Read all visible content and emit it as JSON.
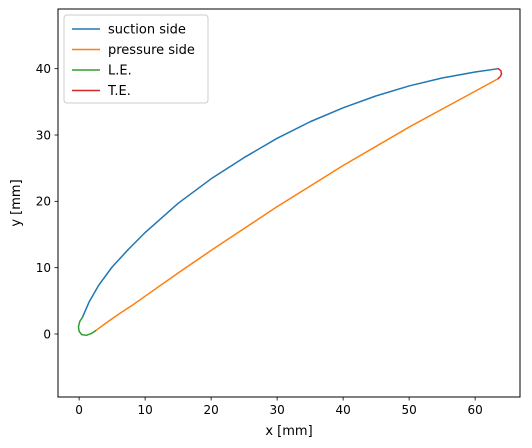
{
  "chart_data": {
    "type": "line",
    "title": "",
    "xlabel": "x [mm]",
    "ylabel": "y [mm]",
    "xlim": [
      -3.2,
      66.8
    ],
    "ylim": [
      -9.5,
      49.0
    ],
    "xticks": [
      0,
      10,
      20,
      30,
      40,
      50,
      60
    ],
    "yticks": [
      0,
      10,
      20,
      30,
      40
    ],
    "xtick_labels": [
      "0",
      "10",
      "20",
      "30",
      "40",
      "50",
      "60"
    ],
    "ytick_labels": [
      "0",
      "10",
      "20",
      "30",
      "40"
    ],
    "grid": false,
    "legend_position": "upper-left",
    "series": [
      {
        "name": "suction side",
        "color": "#1f77b4",
        "x": [
          0.5,
          1.5,
          3.0,
          5.0,
          7.5,
          10.0,
          15.0,
          20.0,
          25.0,
          30.0,
          35.0,
          40.0,
          45.0,
          50.0,
          55.0,
          60.0,
          63.5
        ],
        "y": [
          2.5,
          4.8,
          7.4,
          10.1,
          12.8,
          15.3,
          19.7,
          23.4,
          26.6,
          29.5,
          32.0,
          34.1,
          35.9,
          37.4,
          38.6,
          39.5,
          40.0
        ]
      },
      {
        "name": "pressure side",
        "color": "#ff7f0e",
        "x": [
          2.5,
          4.0,
          6.0,
          8.0,
          10.0,
          15.0,
          20.0,
          25.0,
          30.0,
          35.0,
          40.0,
          45.0,
          50.0,
          55.0,
          60.0,
          63.5
        ],
        "y": [
          0.5,
          1.6,
          3.0,
          4.3,
          5.7,
          9.2,
          12.6,
          15.9,
          19.2,
          22.3,
          25.4,
          28.3,
          31.2,
          33.9,
          36.6,
          38.5
        ]
      },
      {
        "name": "L.E.",
        "color": "#2ca02c",
        "x": [
          2.5,
          1.9,
          1.1,
          0.4,
          0.0,
          -0.1,
          0.1,
          0.5
        ],
        "y": [
          0.5,
          0.1,
          -0.2,
          -0.1,
          0.4,
          1.1,
          1.9,
          2.5
        ]
      },
      {
        "name": "T.E.",
        "color": "#d62728",
        "x": [
          63.5,
          63.9,
          64.0,
          63.8,
          63.5
        ],
        "y": [
          40.0,
          39.7,
          39.2,
          38.8,
          38.5
        ]
      }
    ]
  }
}
